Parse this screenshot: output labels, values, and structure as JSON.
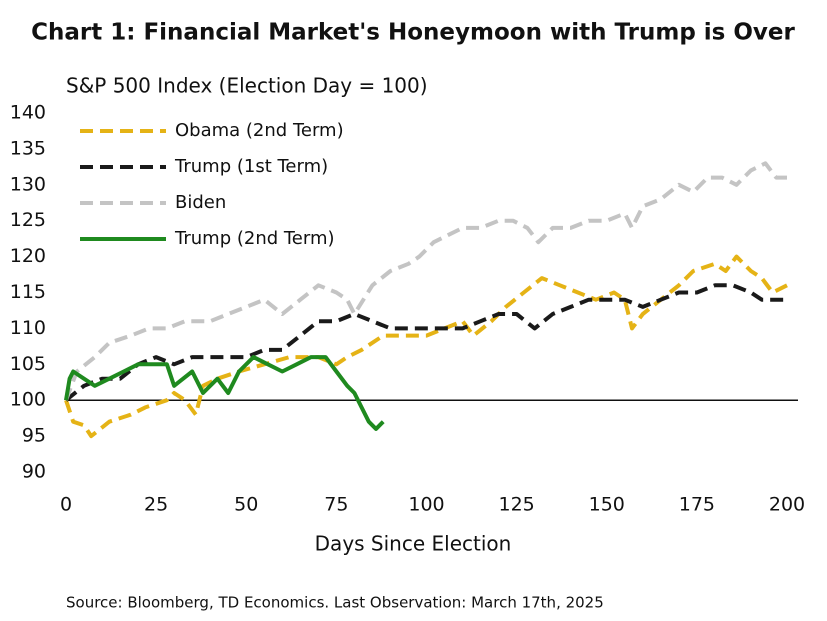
{
  "chart_data": {
    "type": "line",
    "title": "Chart 1: Financial Market's Honeymoon with Trump is Over",
    "subtitle": "S&P 500 Index (Election Day = 100)",
    "x_label": "Days Since Election",
    "note": "Source: Bloomberg, TD Economics. Last Observation: March 17th, 2025",
    "xlim": [
      0,
      200
    ],
    "xticks": [
      0,
      25,
      50,
      75,
      100,
      125,
      150,
      175,
      200
    ],
    "ylim": [
      90,
      140
    ],
    "yticks": [
      90,
      95,
      100,
      105,
      110,
      115,
      120,
      125,
      130,
      135,
      140
    ],
    "hline": 100,
    "legend": "top-left",
    "grid": false,
    "series": [
      {
        "name": "Obama (2nd Term)",
        "color": "#e5b316",
        "dashed": true,
        "x": [
          0,
          2,
          5,
          7,
          12,
          18,
          22,
          28,
          30,
          33,
          36,
          38,
          42,
          48,
          55,
          62,
          70,
          75,
          78,
          82,
          88,
          95,
          100,
          105,
          110,
          113,
          118,
          122,
          127,
          132,
          137,
          142,
          147,
          152,
          155,
          157,
          160,
          165,
          170,
          174,
          180,
          183,
          186,
          190,
          193,
          196,
          200
        ],
        "values": [
          100,
          97,
          96.5,
          95,
          97,
          98,
          99,
          100,
          101,
          100,
          98,
          102,
          103,
          104,
          105,
          106,
          106,
          105,
          106,
          107,
          109,
          109,
          109,
          110,
          111,
          109,
          111,
          113,
          115,
          117,
          116,
          115,
          114,
          115,
          114,
          110,
          112,
          114,
          116,
          118,
          119,
          118,
          120,
          118,
          117,
          115,
          116
        ]
      },
      {
        "name": "Trump (1st Term)",
        "color": "#1a1a1a",
        "dashed": true,
        "x": [
          0,
          5,
          10,
          15,
          20,
          25,
          30,
          35,
          40,
          45,
          50,
          55,
          60,
          65,
          70,
          75,
          80,
          85,
          90,
          95,
          100,
          105,
          110,
          115,
          120,
          125,
          130,
          135,
          140,
          145,
          150,
          155,
          160,
          165,
          170,
          175,
          180,
          185,
          190,
          193,
          196,
          200
        ],
        "values": [
          100,
          102,
          103,
          103,
          105,
          106,
          105,
          106,
          106,
          106,
          106,
          107,
          107,
          109,
          111,
          111,
          112,
          111,
          110,
          110,
          110,
          110,
          110,
          111,
          112,
          112,
          110,
          112,
          113,
          114,
          114,
          114,
          113,
          114,
          115,
          115,
          116,
          116,
          115,
          114,
          114,
          114
        ]
      },
      {
        "name": "Biden",
        "color": "#c4c4c4",
        "dashed": true,
        "x": [
          0,
          3,
          8,
          12,
          18,
          23,
          28,
          33,
          40,
          45,
          50,
          55,
          60,
          65,
          70,
          75,
          78,
          80,
          85,
          90,
          95,
          98,
          102,
          106,
          110,
          115,
          120,
          124,
          128,
          131,
          135,
          140,
          145,
          150,
          155,
          157,
          160,
          165,
          170,
          174,
          178,
          182,
          186,
          190,
          194,
          197,
          200
        ],
        "values": [
          100,
          104,
          106,
          108,
          109,
          110,
          110,
          111,
          111,
          112,
          113,
          114,
          112,
          114,
          116,
          115,
          114,
          112,
          116,
          118,
          119,
          120,
          122,
          123,
          124,
          124,
          125,
          125,
          124,
          122,
          124,
          124,
          125,
          125,
          126,
          124,
          127,
          128,
          130,
          129,
          131,
          131,
          130,
          132,
          133,
          131,
          131
        ]
      },
      {
        "name": "Trump (2nd Term)",
        "color": "#1f8a1f",
        "dashed": false,
        "x": [
          0,
          1,
          2,
          5,
          8,
          12,
          16,
          20,
          25,
          28,
          30,
          35,
          38,
          42,
          45,
          48,
          52,
          56,
          60,
          64,
          68,
          72,
          75,
          78,
          80,
          82,
          84,
          86,
          88
        ],
        "values": [
          100,
          103,
          104,
          103,
          102,
          103,
          104,
          105,
          105,
          105,
          102,
          104,
          101,
          103,
          101,
          104,
          106,
          105,
          104,
          105,
          106,
          106,
          104,
          102,
          101,
          99,
          97,
          96,
          97
        ]
      }
    ]
  }
}
